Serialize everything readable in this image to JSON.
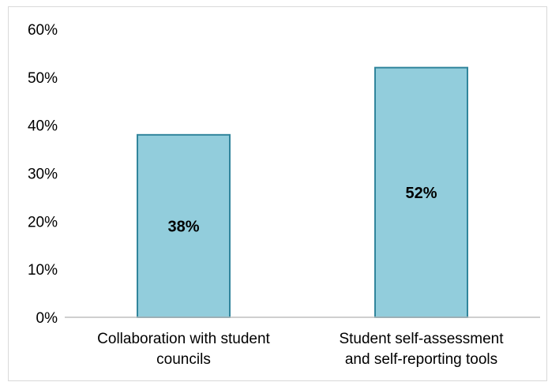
{
  "chart_data": {
    "type": "bar",
    "title": "",
    "xlabel": "",
    "ylabel": "",
    "categories": [
      [
        "Collaboration with student",
        "councils"
      ],
      [
        "Student self-assessment",
        "and self-reporting tools"
      ]
    ],
    "values": [
      0.38,
      0.52
    ],
    "data_labels": [
      "38%",
      "52%"
    ],
    "ylim": [
      0,
      0.6
    ],
    "yticks": [
      0,
      0.1,
      0.2,
      0.3,
      0.4,
      0.5,
      0.6
    ],
    "ytick_labels": [
      "0%",
      "10%",
      "20%",
      "30%",
      "40%",
      "50%",
      "60%"
    ],
    "grid": false,
    "legend": "none",
    "colors": {
      "bar_fill": "#92cddc",
      "bar_stroke": "#31859c",
      "axis": "#bfbfbf"
    }
  }
}
